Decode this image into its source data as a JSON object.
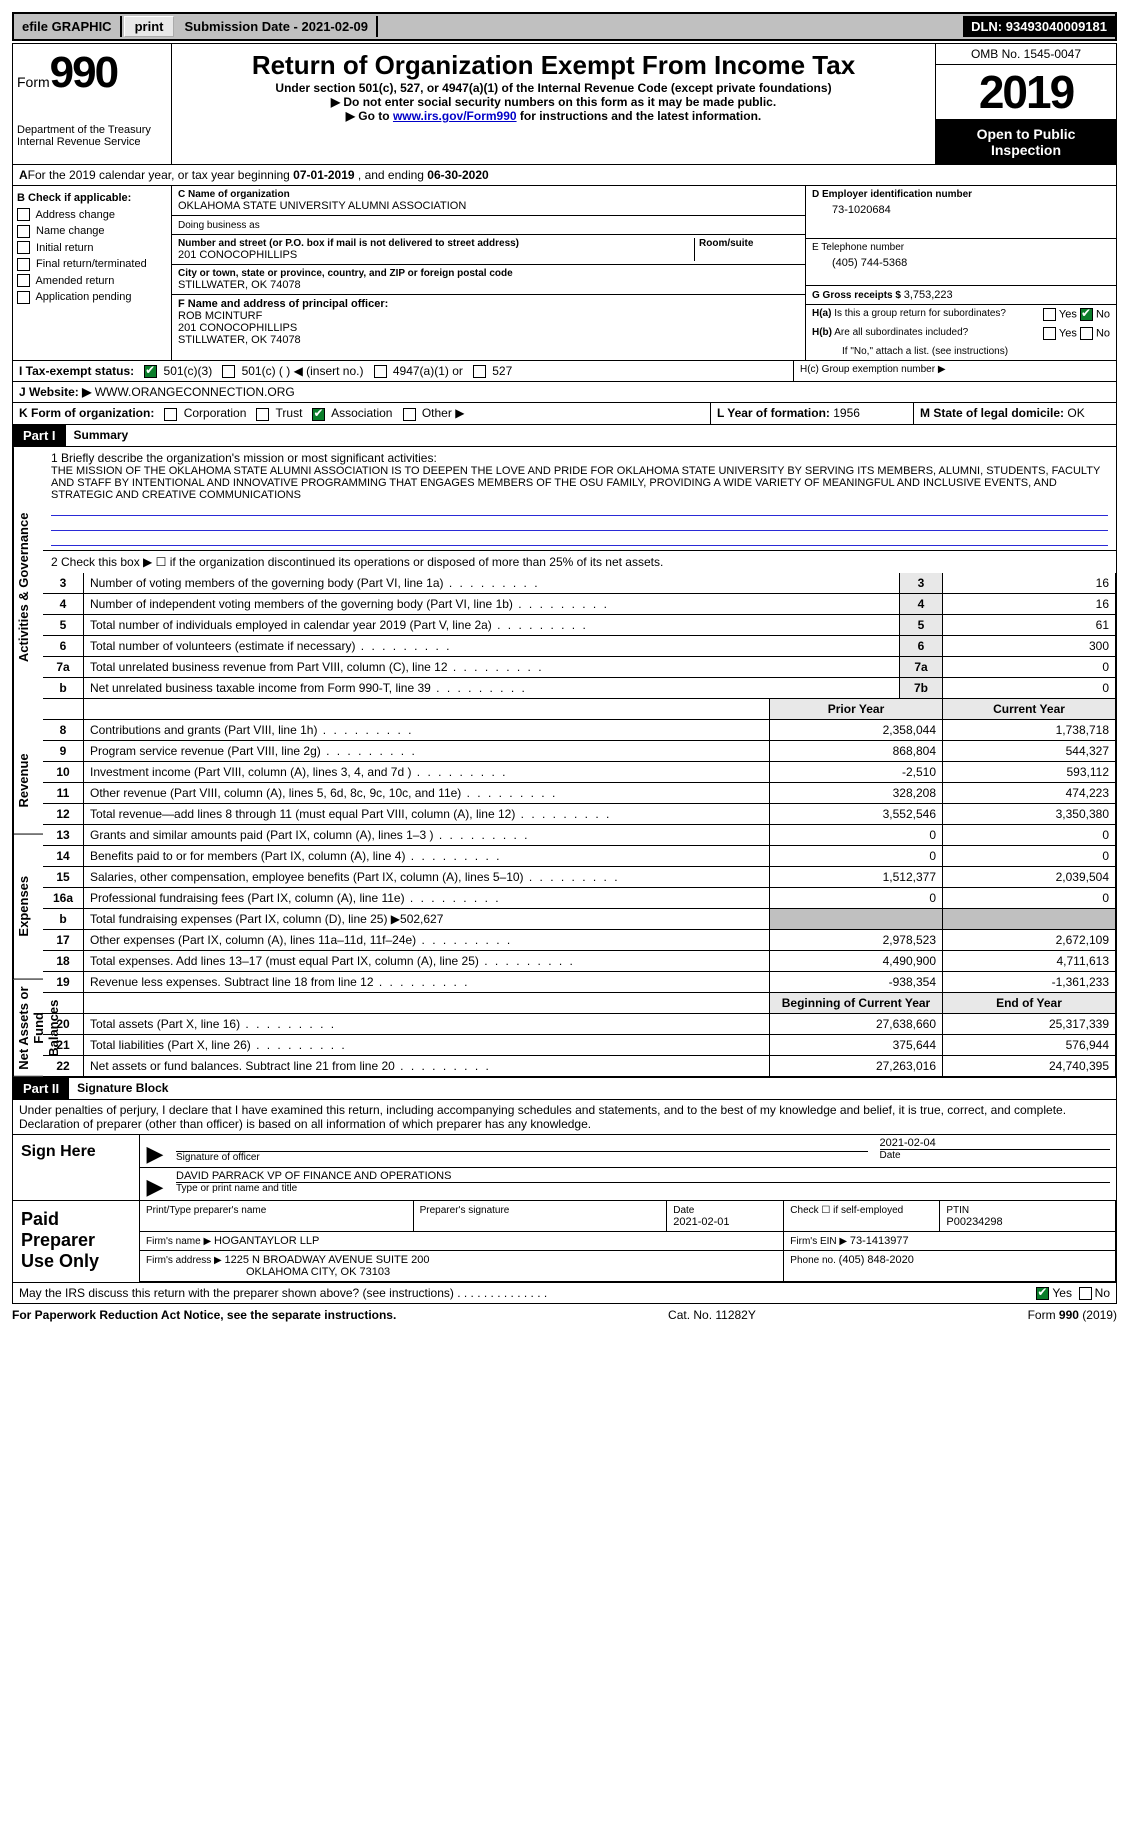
{
  "topbar": {
    "efile_label": "efile GRAPHIC",
    "print_btn": "print",
    "submission_label": "Submission Date - ",
    "submission_date": "2021-02-09",
    "dln_label": "DLN: ",
    "dln": "93493040009181"
  },
  "header": {
    "form_label": "Form",
    "form_number": "990",
    "dept1": "Department of the Treasury",
    "dept2": "Internal Revenue Service",
    "title": "Return of Organization Exempt From Income Tax",
    "subtitle": "Under section 501(c), 527, or 4947(a)(1) of the Internal Revenue Code (except private foundations)",
    "warn1": "Do not enter social security numbers on this form as it may be made public.",
    "warn2_pre": "Go to ",
    "warn2_link": "www.irs.gov/Form990",
    "warn2_post": " for instructions and the latest information.",
    "omb": "OMB No. 1545-0047",
    "year": "2019",
    "open": "Open to Public Inspection"
  },
  "line_a": {
    "pre": "For the 2019 calendar year, or tax year beginning ",
    "begin": "07-01-2019",
    "mid": "   , and ending ",
    "end": "06-30-2020"
  },
  "col_b": {
    "hdr": "B Check if applicable:",
    "items": [
      "Address change",
      "Name change",
      "Initial return",
      "Final return/terminated",
      "Amended return",
      "Application pending"
    ]
  },
  "org": {
    "c_lbl": "C Name of organization",
    "name": "OKLAHOMA STATE UNIVERSITY ALUMNI ASSOCIATION",
    "dba_lbl": "Doing business as",
    "addr_lbl": "Number and street (or P.O. box if mail is not delivered to street address)",
    "room_lbl": "Room/suite",
    "addr": "201 CONOCOPHILLIPS",
    "city_lbl": "City or town, state or province, country, and ZIP or foreign postal code",
    "city": "STILLWATER, OK  74078",
    "f_lbl": "F  Name and address of principal officer:",
    "f_name": "ROB MCINTURF",
    "f_addr1": "201 CONOCOPHILLIPS",
    "f_addr2": "STILLWATER, OK  74078"
  },
  "right": {
    "d_lbl": "D Employer identification number",
    "d_val": "73-1020684",
    "e_lbl": "E Telephone number",
    "e_val": "(405) 744-5368",
    "g_lbl": "G Gross receipts $ ",
    "g_val": "3,753,223",
    "ha_lbl": "H(a)  Is this a group return for subordinates?",
    "hb_lbl": "H(b)  Are all subordinates included?",
    "hb_note": "If \"No,\" attach a list. (see instructions)",
    "hc_lbl": "H(c)  Group exemption number ▶",
    "yes": "Yes",
    "no": "No"
  },
  "tax_status": {
    "lbl": "I   Tax-exempt status:",
    "a": "501(c)(3)",
    "b": "501(c) (   ) ◀ (insert no.)",
    "c": "4947(a)(1) or",
    "d": "527"
  },
  "website": {
    "lbl": "J   Website: ▶ ",
    "val": "WWW.ORANGECONNECTION.ORG"
  },
  "k": {
    "lbl": "K Form of organization:",
    "opts": [
      "Corporation",
      "Trust",
      "Association",
      "Other ▶"
    ],
    "l_lbl": "L Year of formation: ",
    "l_val": "1956",
    "m_lbl": "M State of legal domicile: ",
    "m_val": "OK"
  },
  "part1": {
    "hdr": "Part I",
    "title": "Summary",
    "vlabel_ag": "Activities & Governance",
    "vlabel_rev": "Revenue",
    "vlabel_exp": "Expenses",
    "vlabel_net": "Net Assets or Fund Balances",
    "q1_lbl": "1  Briefly describe the organization's mission or most significant activities:",
    "q1_val": "THE MISSION OF THE OKLAHOMA STATE ALUMNI ASSOCIATION IS TO DEEPEN THE LOVE AND PRIDE FOR OKLAHOMA STATE UNIVERSITY BY SERVING ITS MEMBERS, ALUMNI, STUDENTS, FACULTY AND STAFF BY INTENTIONAL AND INNOVATIVE PROGRAMMING THAT ENGAGES MEMBERS OF THE OSU FAMILY, PROVIDING A WIDE VARIETY OF MEANINGFUL AND INCLUSIVE EVENTS, AND STRATEGIC AND CREATIVE COMMUNICATIONS",
    "q2": "2    Check this box ▶ ☐  if the organization discontinued its operations or disposed of more than 25% of its net assets.",
    "lines_gov": [
      {
        "n": "3",
        "desc": "Number of voting members of the governing body (Part VI, line 1a)",
        "ln": "3",
        "v": "16"
      },
      {
        "n": "4",
        "desc": "Number of independent voting members of the governing body (Part VI, line 1b)",
        "ln": "4",
        "v": "16"
      },
      {
        "n": "5",
        "desc": "Total number of individuals employed in calendar year 2019 (Part V, line 2a)",
        "ln": "5",
        "v": "61"
      },
      {
        "n": "6",
        "desc": "Total number of volunteers (estimate if necessary)",
        "ln": "6",
        "v": "300"
      },
      {
        "n": "7a",
        "desc": "Total unrelated business revenue from Part VIII, column (C), line 12",
        "ln": "7a",
        "v": "0"
      },
      {
        "n": "b",
        "desc": "Net unrelated business taxable income from Form 990-T, line 39",
        "ln": "7b",
        "v": "0"
      }
    ],
    "col_prior": "Prior Year",
    "col_curr": "Current Year",
    "lines_2col": [
      {
        "n": "8",
        "desc": "Contributions and grants (Part VIII, line 1h)",
        "p": "2,358,044",
        "c": "1,738,718",
        "sec": "rev"
      },
      {
        "n": "9",
        "desc": "Program service revenue (Part VIII, line 2g)",
        "p": "868,804",
        "c": "544,327",
        "sec": "rev"
      },
      {
        "n": "10",
        "desc": "Investment income (Part VIII, column (A), lines 3, 4, and 7d )",
        "p": "-2,510",
        "c": "593,112",
        "sec": "rev"
      },
      {
        "n": "11",
        "desc": "Other revenue (Part VIII, column (A), lines 5, 6d, 8c, 9c, 10c, and 11e)",
        "p": "328,208",
        "c": "474,223",
        "sec": "rev"
      },
      {
        "n": "12",
        "desc": "Total revenue—add lines 8 through 11 (must equal Part VIII, column (A), line 12)",
        "p": "3,552,546",
        "c": "3,350,380",
        "sec": "rev"
      },
      {
        "n": "13",
        "desc": "Grants and similar amounts paid (Part IX, column (A), lines 1–3 )",
        "p": "0",
        "c": "0",
        "sec": "exp"
      },
      {
        "n": "14",
        "desc": "Benefits paid to or for members (Part IX, column (A), line 4)",
        "p": "0",
        "c": "0",
        "sec": "exp"
      },
      {
        "n": "15",
        "desc": "Salaries, other compensation, employee benefits (Part IX, column (A), lines 5–10)",
        "p": "1,512,377",
        "c": "2,039,504",
        "sec": "exp"
      },
      {
        "n": "16a",
        "desc": "Professional fundraising fees (Part IX, column (A), line 11e)",
        "p": "0",
        "c": "0",
        "sec": "exp"
      },
      {
        "n": "b",
        "desc": "Total fundraising expenses (Part IX, column (D), line 25) ▶502,627",
        "p": "",
        "c": "",
        "sec": "exp",
        "noval": true
      },
      {
        "n": "17",
        "desc": "Other expenses (Part IX, column (A), lines 11a–11d, 11f–24e)",
        "p": "2,978,523",
        "c": "2,672,109",
        "sec": "exp"
      },
      {
        "n": "18",
        "desc": "Total expenses. Add lines 13–17 (must equal Part IX, column (A), line 25)",
        "p": "4,490,900",
        "c": "4,711,613",
        "sec": "exp"
      },
      {
        "n": "19",
        "desc": "Revenue less expenses. Subtract line 18 from line 12",
        "p": "-938,354",
        "c": "-1,361,233",
        "sec": "exp"
      }
    ],
    "col_begin": "Beginning of Current Year",
    "col_end": "End of Year",
    "lines_net": [
      {
        "n": "20",
        "desc": "Total assets (Part X, line 16)",
        "p": "27,638,660",
        "c": "25,317,339"
      },
      {
        "n": "21",
        "desc": "Total liabilities (Part X, line 26)",
        "p": "375,644",
        "c": "576,944"
      },
      {
        "n": "22",
        "desc": "Net assets or fund balances. Subtract line 21 from line 20",
        "p": "27,263,016",
        "c": "24,740,395"
      }
    ]
  },
  "part2": {
    "hdr": "Part II",
    "title": "Signature Block",
    "perjury": "Under penalties of perjury, I declare that I have examined this return, including accompanying schedules and statements, and to the best of my knowledge and belief, it is true, correct, and complete. Declaration of preparer (other than officer) is based on all information of which preparer has any knowledge.",
    "sign_here": "Sign Here",
    "sig_lbl": "Signature of officer",
    "date_lbl": "Date",
    "sig_date": "2021-02-04",
    "officer": "DAVID PARRACK  VP OF FINANCE AND OPERATIONS",
    "type_lbl": "Type or print name and title",
    "paid": "Paid Preparer Use Only",
    "prep_name_lbl": "Print/Type preparer's name",
    "prep_sig_lbl": "Preparer's signature",
    "prep_date_lbl": "Date",
    "prep_date": "2021-02-01",
    "check_self": "Check ☐ if self-employed",
    "ptin_lbl": "PTIN",
    "ptin": "P00234298",
    "firm_name_lbl": "Firm's name    ▶ ",
    "firm_name": "HOGANTAYLOR LLP",
    "firm_ein_lbl": "Firm's EIN ▶ ",
    "firm_ein": "73-1413977",
    "firm_addr_lbl": "Firm's address ▶ ",
    "firm_addr1": "1225 N BROADWAY AVENUE SUITE 200",
    "firm_addr2": "OKLAHOMA CITY, OK  73103",
    "phone_lbl": "Phone no. ",
    "phone": "(405) 848-2020",
    "discuss": "May the IRS discuss this return with the preparer shown above? (see instructions)",
    "yes": "Yes",
    "no": "No"
  },
  "footer": {
    "left": "For Paperwork Reduction Act Notice, see the separate instructions.",
    "mid": "Cat. No. 11282Y",
    "right_a": "Form ",
    "right_b": "990",
    "right_c": " (2019)"
  }
}
